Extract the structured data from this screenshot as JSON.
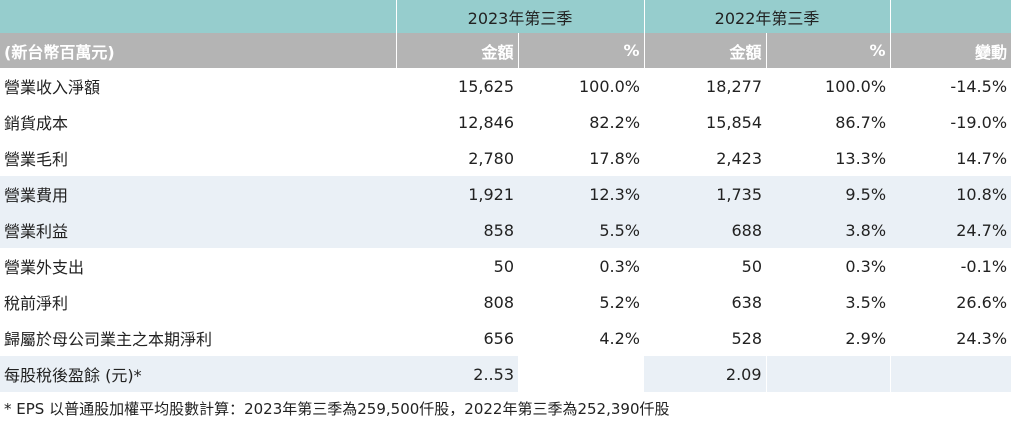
{
  "header": {
    "period_2023": "2023年第三季",
    "period_2022": "2022年第三季",
    "unit_label": "(新台幣百萬元)",
    "amount_label": "金額",
    "pct_label": "%",
    "change_label": "變動"
  },
  "rows": [
    {
      "label": "營業收入淨額",
      "amt23": "15,625",
      "pct23": "100.0%",
      "amt22": "18,277",
      "pct22": "100.0%",
      "chg": "-14.5%"
    },
    {
      "label": "銷貨成本",
      "amt23": "12,846",
      "pct23": "82.2%",
      "amt22": "15,854",
      "pct22": "86.7%",
      "chg": "-19.0%"
    },
    {
      "label": "營業毛利",
      "amt23": "2,780",
      "pct23": "17.8%",
      "amt22": "2,423",
      "pct22": "13.3%",
      "chg": "14.7%"
    },
    {
      "label": "營業費用",
      "amt23": "1,921",
      "pct23": "12.3%",
      "amt22": "1,735",
      "pct22": "9.5%",
      "chg": "10.8%"
    },
    {
      "label": "營業利益",
      "amt23": "858",
      "pct23": "5.5%",
      "amt22": "688",
      "pct22": "3.8%",
      "chg": "24.7%"
    },
    {
      "label": "營業外支出",
      "amt23": "50",
      "pct23": "0.3%",
      "amt22": "50",
      "pct22": "0.3%",
      "chg": "-0.1%"
    },
    {
      "label": "稅前淨利",
      "amt23": "808",
      "pct23": "5.2%",
      "amt22": "638",
      "pct22": "3.5%",
      "chg": "26.6%"
    },
    {
      "label": "歸屬於母公司業主之本期淨利",
      "amt23": "656",
      "pct23": "4.2%",
      "amt22": "528",
      "pct22": "2.9%",
      "chg": "24.3%"
    },
    {
      "label": "每股稅後盈餘 (元)*",
      "amt23": "2..53",
      "pct23": "",
      "amt22": "2.09",
      "pct22": "",
      "chg": ""
    }
  ],
  "footnote": "* EPS 以普通股加權平均股數計算：2023年第三季為259,500仟股，2022年第三季為252,390仟股",
  "colors": {
    "header_teal": "#96cdcd",
    "header_gray": "#b4b4b4",
    "row_shade": "#eaf0f6"
  }
}
